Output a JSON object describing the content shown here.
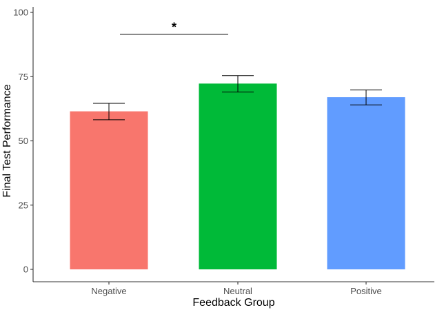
{
  "chart_data": {
    "type": "bar",
    "title": "",
    "xlabel": "Feedback Group",
    "ylabel": "Final Test Performance",
    "ylim": [
      0,
      100
    ],
    "yticks": [
      0,
      25,
      50,
      75,
      100
    ],
    "categories": [
      "Negative",
      "Neutral",
      "Positive"
    ],
    "values": [
      61.5,
      72.3,
      67.0
    ],
    "error_low": [
      58.2,
      69.0,
      64.0
    ],
    "error_high": [
      64.6,
      75.4,
      69.8
    ],
    "colors": [
      "#F8766D",
      "#00BA38",
      "#619CFF"
    ],
    "grid": false,
    "significance": [
      {
        "from": "Negative",
        "to": "Neutral",
        "y": 91.5,
        "label": "*"
      }
    ]
  }
}
